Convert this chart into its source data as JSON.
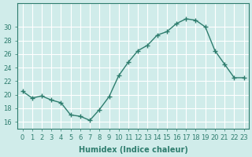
{
  "x": [
    0,
    1,
    2,
    3,
    4,
    5,
    6,
    7,
    8,
    9,
    10,
    11,
    12,
    13,
    14,
    15,
    16,
    17,
    18,
    19,
    20,
    21,
    22,
    23
  ],
  "y": [
    20.5,
    19.5,
    19.8,
    19.2,
    18.8,
    17.0,
    16.8,
    16.2,
    17.8,
    19.7,
    22.8,
    24.8,
    26.5,
    27.3,
    28.8,
    29.3,
    30.5,
    31.2,
    31.0,
    30.0,
    26.5,
    24.5,
    22.5,
    22.5
  ],
  "line_color": "#2e7d6e",
  "marker": "+",
  "bg_color": "#d0ecea",
  "grid_color": "#ffffff",
  "xlabel": "Humidex (Indice chaleur)",
  "ylim_min": 15.0,
  "ylim_max": 33.5,
  "yticks": [
    16,
    18,
    20,
    22,
    24,
    26,
    28,
    30
  ],
  "xticks": [
    0,
    1,
    2,
    3,
    4,
    5,
    6,
    7,
    8,
    9,
    10,
    11,
    12,
    13,
    14,
    15,
    16,
    17,
    18,
    19,
    20,
    21,
    22,
    23
  ],
  "font_color": "#2e7d6e",
  "tick_fontsize": 6,
  "label_fontsize": 7
}
